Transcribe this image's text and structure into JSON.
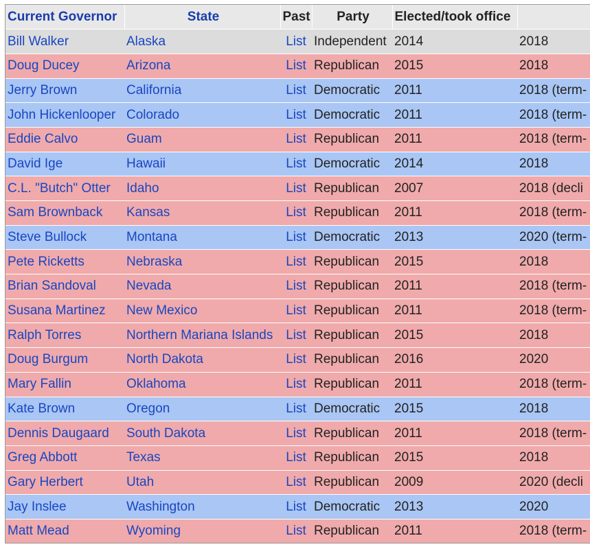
{
  "headers": {
    "governor": "Current Governor",
    "state": "State",
    "past": "Past",
    "party": "Party",
    "elected": "Elected/took office",
    "term_end": ""
  },
  "party_colors": {
    "Independent": "#dcdcdc",
    "Republican": "#f0aaab",
    "Democratic": "#a9c6f4"
  },
  "rows": [
    {
      "governor": "Bill Walker",
      "state": "Alaska",
      "past": "List",
      "party": "Independent",
      "elected": "2014",
      "term_end": "2018"
    },
    {
      "governor": "Doug Ducey",
      "state": "Arizona",
      "past": "List",
      "party": "Republican",
      "elected": "2015",
      "term_end": "2018"
    },
    {
      "governor": "Jerry Brown",
      "state": "California",
      "past": "List",
      "party": "Democratic",
      "elected": "2011",
      "term_end": "2018 (term-"
    },
    {
      "governor": "John Hickenlooper",
      "state": "Colorado",
      "past": "List",
      "party": "Democratic",
      "elected": "2011",
      "term_end": "2018 (term-"
    },
    {
      "governor": "Eddie Calvo",
      "state": "Guam",
      "past": "List",
      "party": "Republican",
      "elected": "2011",
      "term_end": "2018 (term-"
    },
    {
      "governor": "David Ige",
      "state": "Hawaii",
      "past": "List",
      "party": "Democratic",
      "elected": "2014",
      "term_end": "2018"
    },
    {
      "governor": "C.L. \"Butch\" Otter",
      "state": "Idaho",
      "past": "List",
      "party": "Republican",
      "elected": "2007",
      "term_end": "2018 (decli"
    },
    {
      "governor": "Sam Brownback",
      "state": "Kansas",
      "past": "List",
      "party": "Republican",
      "elected": "2011",
      "term_end": "2018 (term-"
    },
    {
      "governor": "Steve Bullock",
      "state": "Montana",
      "past": "List",
      "party": "Democratic",
      "elected": "2013",
      "term_end": "2020 (term-"
    },
    {
      "governor": "Pete Ricketts",
      "state": "Nebraska",
      "past": "List",
      "party": "Republican",
      "elected": "2015",
      "term_end": "2018"
    },
    {
      "governor": "Brian Sandoval",
      "state": "Nevada",
      "past": "List",
      "party": "Republican",
      "elected": "2011",
      "term_end": "2018 (term-"
    },
    {
      "governor": "Susana Martinez",
      "state": "New Mexico",
      "past": "List",
      "party": "Republican",
      "elected": "2011",
      "term_end": "2018 (term-"
    },
    {
      "governor": "Ralph Torres",
      "state": "Northern Mariana Islands",
      "past": "List",
      "party": "Republican",
      "elected": "2015",
      "term_end": "2018"
    },
    {
      "governor": "Doug Burgum",
      "state": "North Dakota",
      "past": "List",
      "party": "Republican",
      "elected": "2016",
      "term_end": "2020"
    },
    {
      "governor": "Mary Fallin",
      "state": "Oklahoma",
      "past": "List",
      "party": "Republican",
      "elected": "2011",
      "term_end": "2018 (term-"
    },
    {
      "governor": "Kate Brown",
      "state": "Oregon",
      "past": "List",
      "party": "Democratic",
      "elected": "2015",
      "term_end": "2018"
    },
    {
      "governor": "Dennis Daugaard",
      "state": "South Dakota",
      "past": "List",
      "party": "Republican",
      "elected": "2011",
      "term_end": "2018 (term-"
    },
    {
      "governor": "Greg Abbott",
      "state": "Texas",
      "past": "List",
      "party": "Republican",
      "elected": "2015",
      "term_end": "2018"
    },
    {
      "governor": "Gary Herbert",
      "state": "Utah",
      "past": "List",
      "party": "Republican",
      "elected": "2009",
      "term_end": "2020 (decli"
    },
    {
      "governor": "Jay Inslee",
      "state": "Washington",
      "past": "List",
      "party": "Democratic",
      "elected": "2013",
      "term_end": "2020"
    },
    {
      "governor": "Matt Mead",
      "state": "Wyoming",
      "past": "List",
      "party": "Republican",
      "elected": "2011",
      "term_end": "2018 (term-"
    }
  ]
}
